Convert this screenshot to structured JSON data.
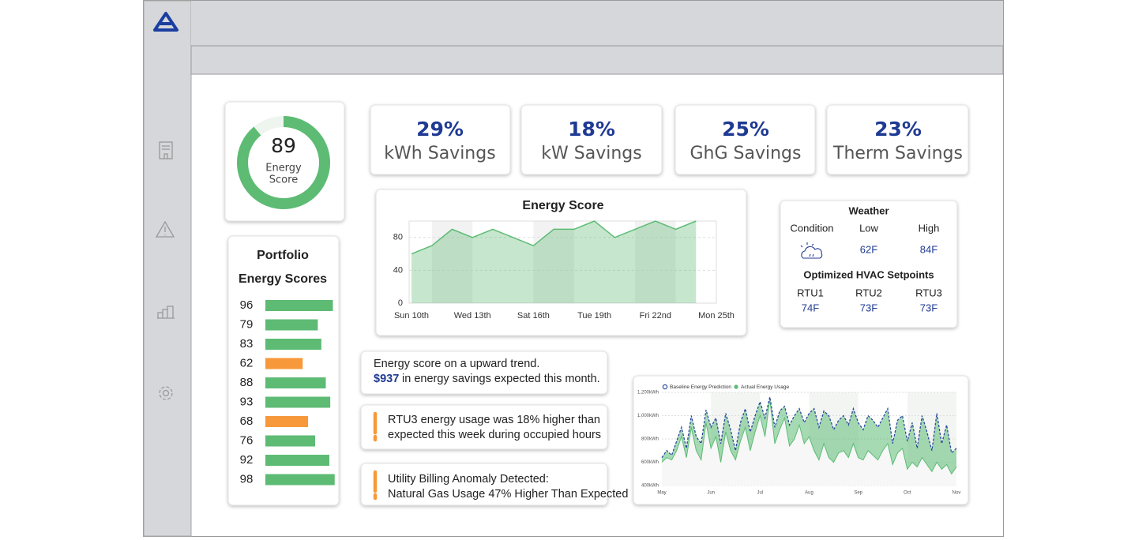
{
  "score": {
    "value": 89,
    "scale": [
      0,
      100
    ],
    "label_lines": [
      "Energy",
      "Score"
    ],
    "color": "#5dbb74"
  },
  "savings": [
    {
      "value": "29%",
      "label": "kWh Savings"
    },
    {
      "value": "18%",
      "label": "kW Savings"
    },
    {
      "value": "25%",
      "label": "GhG Savings"
    },
    {
      "value": "23%",
      "label": "Therm Savings"
    }
  ],
  "portfolio": {
    "title_lines": [
      "Portfolio",
      "Energy Scores"
    ],
    "values": [
      96,
      79,
      83,
      62,
      88,
      93,
      68,
      76,
      92,
      98
    ],
    "colors": [
      "#5dbb74",
      "#5dbb74",
      "#5dbb74",
      "#f7993a",
      "#5dbb74",
      "#5dbb74",
      "#f7993a",
      "#5dbb74",
      "#5dbb74",
      "#5dbb74"
    ],
    "xlim": [
      20,
      100
    ]
  },
  "energy_score_chart": {
    "type": "area",
    "title": "Energy Score",
    "categories": [
      "Sun 10th",
      null,
      null,
      "Wed 13th",
      null,
      null,
      "Sat 16th",
      null,
      null,
      "Tue 19th",
      null,
      null,
      "Fri 22nd",
      null,
      null,
      "Mon 25th"
    ],
    "values": [
      60,
      70,
      90,
      80,
      90,
      80,
      70,
      90,
      90,
      100,
      80,
      90,
      100,
      90,
      100,
      null
    ],
    "ylim": [
      0,
      100
    ],
    "yticks": [
      0,
      40,
      80
    ],
    "color": "#5dbb74",
    "grid": true
  },
  "weather": {
    "title": "Weather",
    "headers": [
      "Condition",
      "Low",
      "High"
    ],
    "low": "62F",
    "high": "84F",
    "setpoints_title": "Optimized HVAC Setpoints",
    "units": [
      "RTU1",
      "RTU2",
      "RTU3"
    ],
    "setpoints": [
      "74F",
      "73F",
      "73F"
    ]
  },
  "alerts": [
    {
      "line1": "Energy score on a upward trend.",
      "amount": "$937",
      "line2": "in energy savings expected this month."
    },
    {
      "lines": [
        "RTU3 energy usage was 18% higher than",
        "expected this week during occupied hours"
      ]
    },
    {
      "lines": [
        "Utility Billing Anomaly Detected:",
        "Natural Gas Usage 47% Higher Than Expected"
      ]
    }
  ],
  "energy_usage_chart": {
    "type": "line",
    "categories": [
      "May",
      null,
      null,
      null,
      null,
      null,
      null,
      null,
      null,
      null,
      "Jun",
      null,
      null,
      null,
      null,
      null,
      null,
      null,
      null,
      null,
      "Jul",
      null,
      null,
      null,
      null,
      null,
      null,
      null,
      null,
      null,
      "Aug",
      null,
      null,
      null,
      null,
      null,
      null,
      null,
      null,
      null,
      "Sep",
      null,
      null,
      null,
      null,
      null,
      null,
      null,
      null,
      null,
      "Oct",
      null,
      null,
      null,
      null,
      null,
      null,
      null,
      null,
      null,
      "Nov"
    ],
    "series": [
      {
        "name": "Baseline Energy Prediction",
        "color": "#2b4aa0",
        "values": [
          640,
          700,
          660,
          780,
          900,
          720,
          1000,
          820,
          760,
          1050,
          900,
          980,
          760,
          1020,
          880,
          700,
          940,
          1060,
          860,
          1000,
          1120,
          980,
          1160,
          900,
          1040,
          1080,
          920,
          1000,
          1060,
          940,
          1020,
          1060,
          900,
          1040,
          1000,
          880,
          960,
          1000,
          920,
          1060,
          940,
          880,
          1000,
          960,
          900,
          980,
          1060,
          760,
          960,
          1000,
          780,
          940,
          720,
          1000,
          860,
          700,
          1020,
          760,
          920,
          680,
          720
        ]
      },
      {
        "name": "Actual Energy Usage",
        "color": "#5dbb74",
        "values": [
          600,
          640,
          620,
          700,
          820,
          640,
          900,
          700,
          620,
          940,
          720,
          820,
          600,
          860,
          700,
          620,
          780,
          900,
          700,
          860,
          1000,
          820,
          1140,
          760,
          880,
          980,
          740,
          800,
          920,
          760,
          820,
          700,
          620,
          760,
          640,
          600,
          680,
          700,
          640,
          760,
          640,
          620,
          700,
          660,
          620,
          700,
          760,
          580,
          680,
          720,
          540,
          600,
          560,
          640,
          580,
          520,
          600,
          540,
          580,
          500,
          560
        ]
      }
    ],
    "ylim": [
      400,
      1200
    ],
    "yticks": [
      {
        "value": 400,
        "label": "400kWh"
      },
      {
        "value": 600,
        "label": "600kWh"
      },
      {
        "value": 800,
        "label": "800kWh"
      },
      {
        "value": 1000,
        "label": "1,000kWh"
      },
      {
        "value": 1200,
        "label": "1,200kWh"
      }
    ],
    "grid": true
  }
}
